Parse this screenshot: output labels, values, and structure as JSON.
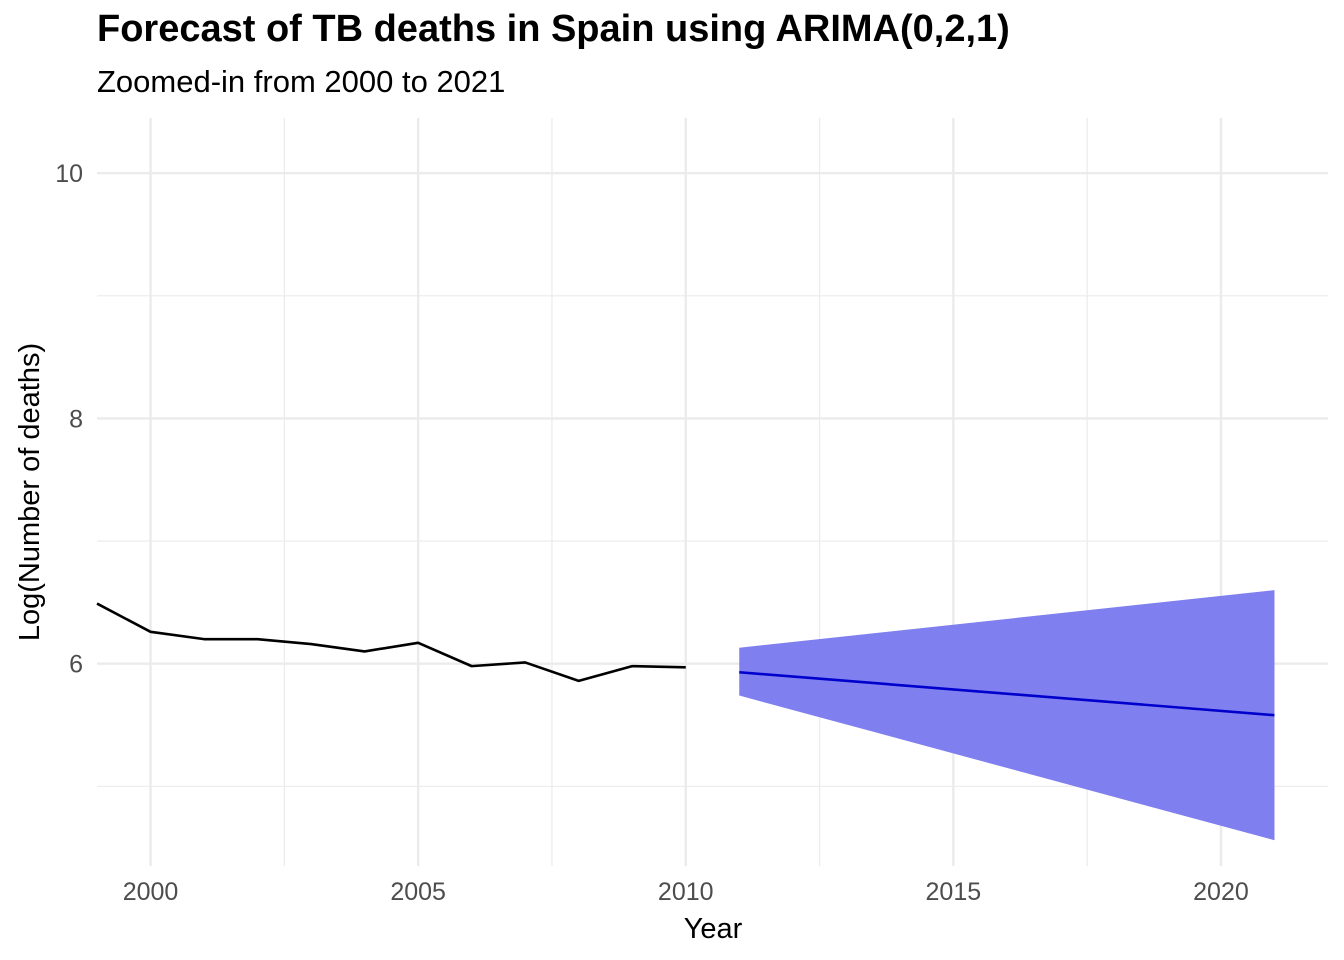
{
  "chart_data": {
    "type": "line",
    "title": "Forecast of TB deaths in Spain using ARIMA(0,2,1)",
    "subtitle": "Zoomed-in from 2000 to 2021",
    "xlabel": "Year",
    "ylabel": "Log(Number of deaths)",
    "xlim": [
      1999,
      2022
    ],
    "ylim": [
      4.35,
      10.45
    ],
    "x_ticks": [
      2000,
      2005,
      2010,
      2015,
      2020
    ],
    "y_ticks": [
      6,
      8,
      10
    ],
    "grid": true,
    "series": [
      {
        "role": "observed",
        "color": "#000000",
        "x": [
          1999,
          2000,
          2001,
          2002,
          2003,
          2004,
          2005,
          2006,
          2007,
          2008,
          2009,
          2010
        ],
        "y": [
          6.49,
          6.26,
          6.2,
          6.2,
          6.16,
          6.1,
          6.17,
          5.98,
          6.01,
          5.86,
          5.98,
          5.97
        ]
      },
      {
        "role": "forecast",
        "color": "#0000cc",
        "x": [
          2011,
          2021
        ],
        "y": [
          5.93,
          5.58
        ]
      }
    ],
    "band": {
      "role": "prediction-interval",
      "color": "#7f7fef",
      "x": [
        2011,
        2021
      ],
      "lower": [
        5.74,
        4.56
      ],
      "upper": [
        6.13,
        6.6
      ]
    }
  }
}
